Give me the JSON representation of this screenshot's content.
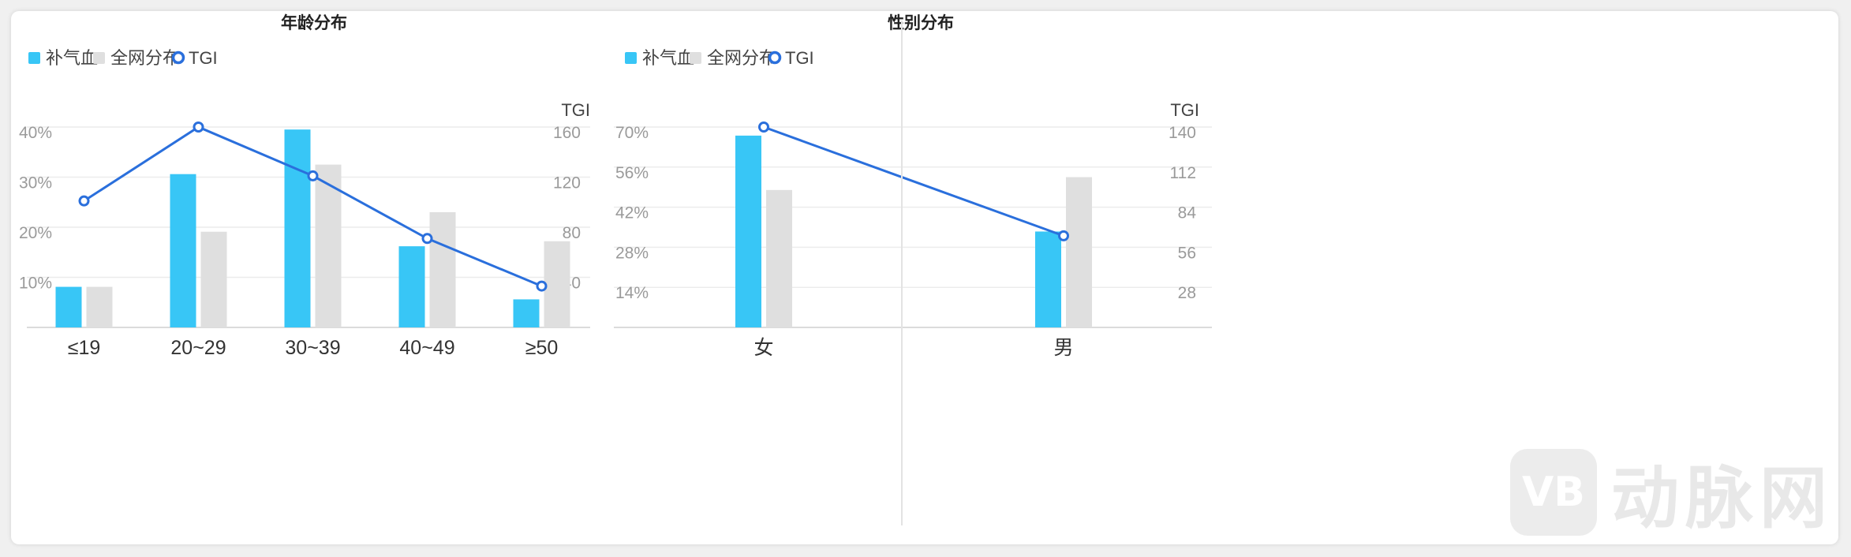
{
  "chart_data": [
    {
      "type": "bar",
      "title": "年龄分布",
      "categories": [
        "≤19",
        "20~29",
        "30~39",
        "40~49",
        "≥50"
      ],
      "series": [
        {
          "name": "补气血",
          "values": [
            8.1,
            30.6,
            39.5,
            16.2,
            5.6
          ]
        },
        {
          "name": "全网分布",
          "values": [
            8.1,
            19.1,
            32.5,
            23.0,
            17.2
          ]
        }
      ],
      "line_series": {
        "name": "TGI",
        "values": [
          101,
          160,
          121,
          71,
          33
        ]
      },
      "ylim": [
        0,
        40
      ],
      "y2lim": [
        0,
        160
      ],
      "y_ticks": [
        "10%",
        "20%",
        "30%",
        "40%"
      ],
      "y2_ticks": [
        "40",
        "80",
        "120",
        "160"
      ],
      "y2label": "TGI",
      "grid": true,
      "legend": "top-left",
      "colors": {
        "补气血": "#38c6f6",
        "全网分布": "#dfdfdf",
        "TGI": "#2a6fdc"
      }
    },
    {
      "type": "bar",
      "title": "性别分布",
      "categories": [
        "女",
        "男"
      ],
      "series": [
        {
          "name": "补气血",
          "values": [
            67,
            33.5
          ]
        },
        {
          "name": "全网分布",
          "values": [
            48,
            52.5
          ]
        }
      ],
      "line_series": {
        "name": "TGI",
        "values": [
          140,
          64
        ]
      },
      "ylim": [
        0,
        70
      ],
      "y2lim": [
        0,
        140
      ],
      "y_ticks": [
        "14%",
        "28%",
        "42%",
        "56%",
        "70%"
      ],
      "y2_ticks": [
        "28",
        "56",
        "84",
        "112",
        "140"
      ],
      "y2label": "TGI",
      "grid": true,
      "legend": "top-left",
      "colors": {
        "补气血": "#38c6f6",
        "全网分布": "#dfdfdf",
        "TGI": "#2a6fdc"
      }
    }
  ],
  "watermark": {
    "logo": "VB",
    "text": "动脉网"
  }
}
